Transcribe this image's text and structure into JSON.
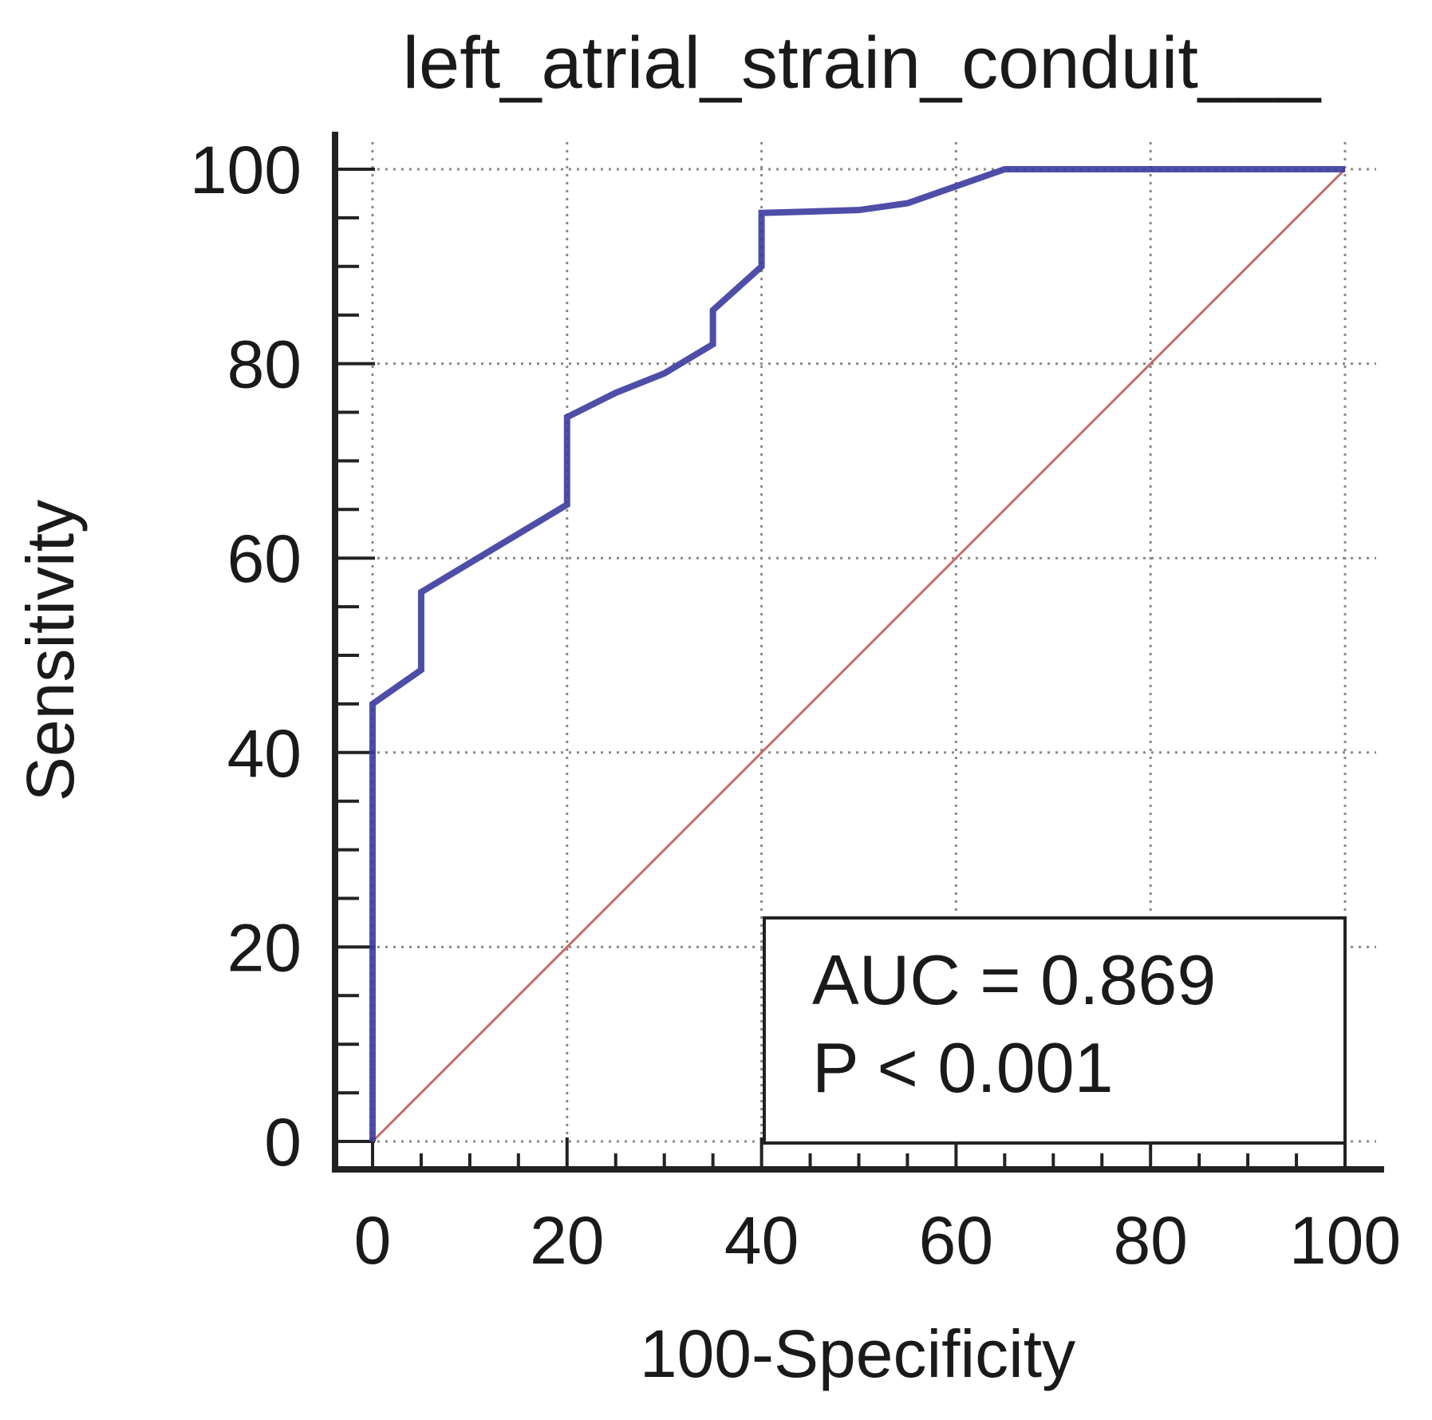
{
  "chart_data": {
    "type": "line",
    "title": "left_atrial_strain_conduit___",
    "xlabel": "100-Specificity",
    "ylabel": "Sensitivity",
    "xlim": [
      0,
      100
    ],
    "ylim": [
      0,
      100
    ],
    "x_ticks": [
      0,
      20,
      40,
      60,
      80,
      100
    ],
    "y_ticks": [
      0,
      20,
      40,
      60,
      80,
      100
    ],
    "x_tick_labels": [
      "0",
      "20",
      "40",
      "60",
      "80",
      "100"
    ],
    "y_tick_labels": [
      "0",
      "20",
      "40",
      "60",
      "80",
      "100"
    ],
    "grid": true,
    "series": [
      {
        "name": "ROC curve",
        "color": "#3b3b9e",
        "x": [
          0,
          0,
          5,
          5,
          10,
          20,
          20,
          25,
          30,
          35,
          35,
          40,
          40,
          50,
          55,
          65,
          100
        ],
        "y": [
          0,
          45,
          48.5,
          56.5,
          59.5,
          65.5,
          74.5,
          77,
          79,
          82,
          85.5,
          90,
          95.5,
          95.8,
          96.5,
          100,
          100
        ]
      },
      {
        "name": "Reference line",
        "color": "#c76a6a",
        "x": [
          0,
          100
        ],
        "y": [
          0,
          100
        ]
      }
    ],
    "annotation": {
      "auc_text": "AUC = 0.869",
      "p_text": "P < 0.001",
      "placement": "bottom-right"
    }
  }
}
